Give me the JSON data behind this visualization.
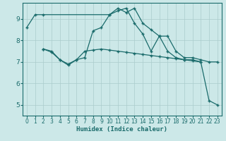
{
  "xlabel": "Humidex (Indice chaleur)",
  "bg_color": "#cce8e8",
  "grid_color": "#aacccc",
  "line_color": "#1a6b6b",
  "xlim": [
    -0.5,
    23.5
  ],
  "ylim": [
    4.5,
    9.75
  ],
  "xticks": [
    0,
    1,
    2,
    3,
    4,
    5,
    6,
    7,
    8,
    9,
    10,
    11,
    12,
    13,
    14,
    15,
    16,
    17,
    18,
    19,
    20,
    21,
    22,
    23
  ],
  "yticks": [
    5,
    6,
    7,
    8,
    9
  ],
  "series1_x": [
    0,
    1,
    2,
    10,
    11,
    12,
    13,
    14,
    15,
    16,
    17,
    18,
    19,
    20,
    21,
    22,
    23
  ],
  "series1_y": [
    8.6,
    9.2,
    9.2,
    9.2,
    9.5,
    9.3,
    9.5,
    8.8,
    8.5,
    8.2,
    8.2,
    7.5,
    7.2,
    7.2,
    7.1,
    7.0,
    7.0
  ],
  "series2_x": [
    2,
    3,
    4,
    5,
    6,
    7,
    8,
    9,
    10,
    11,
    12,
    13,
    14,
    15,
    16,
    17,
    18,
    19,
    20,
    21
  ],
  "series2_y": [
    7.6,
    7.5,
    7.1,
    6.9,
    7.1,
    7.5,
    7.55,
    7.6,
    7.55,
    7.5,
    7.45,
    7.4,
    7.35,
    7.3,
    7.25,
    7.2,
    7.15,
    7.1,
    7.05,
    7.0
  ],
  "series3_x": [
    2,
    3,
    4,
    5,
    6,
    7,
    8,
    9,
    10,
    11,
    12,
    13,
    14,
    15,
    16,
    17,
    18,
    19,
    20,
    21,
    22,
    23
  ],
  "series3_y": [
    7.6,
    7.45,
    7.1,
    6.85,
    7.1,
    7.2,
    8.45,
    8.6,
    9.2,
    9.38,
    9.5,
    8.8,
    8.3,
    7.5,
    8.2,
    7.5,
    7.2,
    7.1,
    7.1,
    7.0,
    5.2,
    5.0
  ]
}
